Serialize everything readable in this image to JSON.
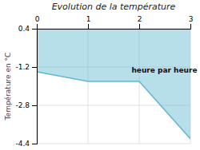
{
  "chart_data": {
    "type": "area",
    "title": "Evolution de la température",
    "y_label": "Température en °C",
    "x": [
      0,
      1,
      2,
      3
    ],
    "values": [
      -1.4,
      -1.8,
      -1.8,
      -4.2
    ],
    "fill_to": 0.4,
    "color": "#60b8d0",
    "xlim": [
      0,
      3
    ],
    "ylim": [
      -4.4,
      0.4
    ],
    "xticks": [
      0,
      1,
      2,
      3
    ],
    "yticks": [
      0.4,
      -1.2,
      -2.8,
      -4.4
    ],
    "grid": true,
    "annotations": [
      {
        "text": "heure par heure",
        "x": 1.85,
        "y": -1.35
      }
    ]
  }
}
